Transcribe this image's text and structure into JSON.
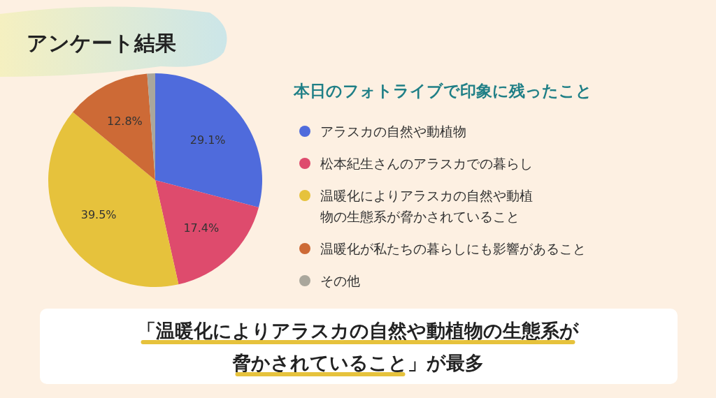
{
  "chart_data": {
    "type": "pie",
    "title": "アンケート結果",
    "legend_title": "本日のフォトライブで印象に残ったこと",
    "categories": [
      "アラスカの自然や動植物",
      "松本紀生さんのアラスカでの暮らし",
      "温暖化によりアラスカの自然や動植物の生態系が脅かされていること",
      "温暖化が私たちの暮らしにも影響があること",
      "その他"
    ],
    "values": [
      29.1,
      17.4,
      39.5,
      12.8,
      1.2
    ],
    "colors": [
      "#4f6bdc",
      "#de4b6d",
      "#e6c23c",
      "#cd6a36",
      "#aaa79c"
    ],
    "value_labels": [
      "29.1%",
      "17.4%",
      "39.5%",
      "12.8%",
      null
    ],
    "legend": "right",
    "annotations": [
      "「温暖化によりアラスカの自然や動植物の生態系が脅かされていること」が最多"
    ]
  }
}
